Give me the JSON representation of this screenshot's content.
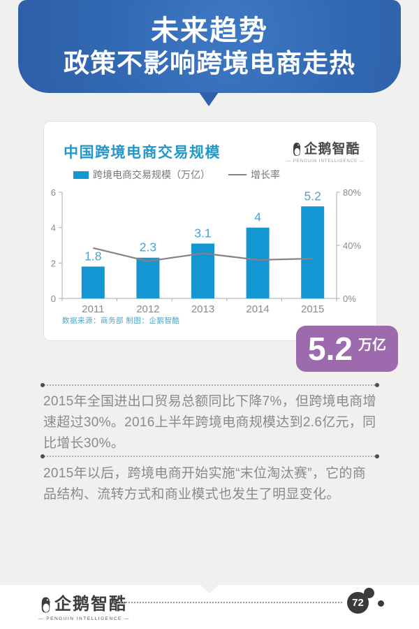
{
  "header": {
    "line1": "未来趋势",
    "line2": "政策不影响跨境电商走热"
  },
  "chart_card": {
    "title": "中国跨境电商交易规模",
    "brand_name": "企鹅智酷",
    "brand_subtitle": "— PENGUIN INTELLIGENCE —",
    "legend_bar_label": "跨境电商交易规模（万亿）",
    "legend_line_label": "增长率",
    "source_note": "数据来源：商务部 制图：企鹅智酷"
  },
  "chart_data": {
    "type": "bar",
    "title": "中国跨境电商交易规模",
    "categories": [
      "2011",
      "2012",
      "2013",
      "2014",
      "2015"
    ],
    "series": [
      {
        "name": "跨境电商交易规模（万亿）",
        "type": "bar",
        "axis": "left",
        "color": "#1496d3",
        "values": [
          1.8,
          2.3,
          3.1,
          4,
          5.2
        ],
        "labels": [
          "1.8",
          "2.3",
          "3.1",
          "4",
          "5.2"
        ]
      },
      {
        "name": "增长率",
        "type": "line",
        "axis": "right",
        "color": "#8c8085",
        "values": [
          38,
          28,
          34,
          29,
          30
        ],
        "unit": "%"
      }
    ],
    "left_axis": {
      "min": 0,
      "max": 6,
      "ticks": [
        0,
        2,
        4,
        6
      ]
    },
    "right_axis": {
      "min": 0,
      "max": 80,
      "ticks": [
        0,
        40,
        80
      ],
      "tick_labels": [
        "0%",
        "40%",
        "80%"
      ]
    },
    "grid": false,
    "legend_position": "top-left",
    "value_label_color": "#4aa2d8",
    "axis_text_color": "#8a8a8a"
  },
  "highlight_badge": {
    "value": "5.2",
    "unit": "万亿"
  },
  "paragraphs": [
    "2015年全国进出口贸易总额同比下降7%，但跨境电商增速超过30%。2016上半年跨境电商规模达到2.6亿元，同比增长30%。",
    "2015年以后，跨境电商开始实施“末位淘汰赛”，它的商品结构、流转方式和商业模式也发生了明显变化。"
  ],
  "footer": {
    "brand_name": "企鹅智酷",
    "brand_subtitle": "— PENGUIN INTELLIGENCE —",
    "page_number": "72"
  },
  "colors": {
    "header_blue": "#2f63ac",
    "bar_blue": "#1496d3",
    "title_blue": "#2397c8",
    "line_gray": "#8c8085",
    "badge_purple": "#9d6aad",
    "background": "#f0f0ef"
  }
}
